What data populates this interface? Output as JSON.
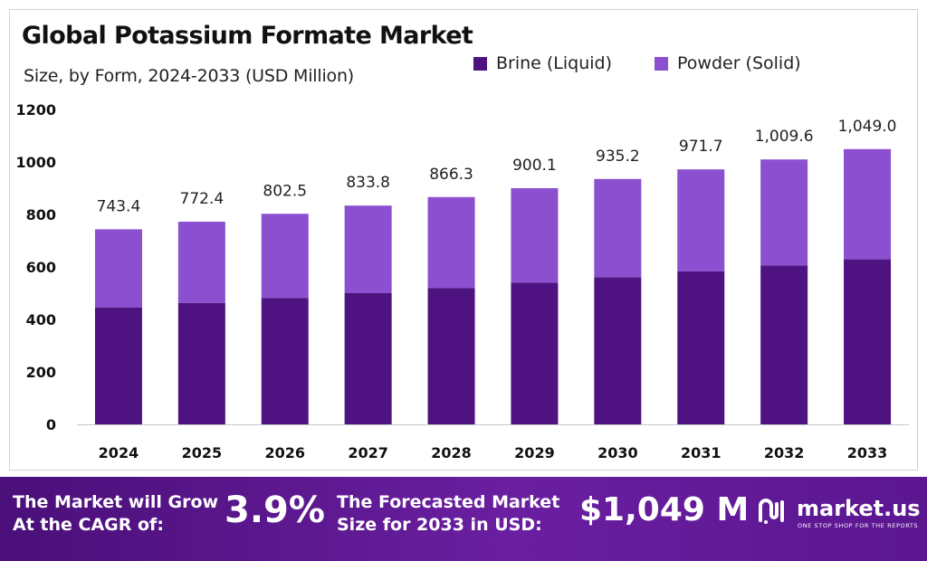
{
  "header": {
    "title": "Global Potassium Formate Market",
    "subtitle": "Size, by Form, 2024-2033 (USD Million)"
  },
  "colors": {
    "brine": "#4e1380",
    "powder": "#8b4fd0",
    "banner": "#5a168e"
  },
  "chart_data": {
    "type": "bar",
    "stacked": true,
    "categories": [
      "2024",
      "2025",
      "2026",
      "2027",
      "2028",
      "2029",
      "2030",
      "2031",
      "2032",
      "2033"
    ],
    "series": [
      {
        "name": "Brine (Liquid)",
        "values": [
          446,
          463,
          482,
          500,
          520,
          540,
          561,
          583,
          606,
          629
        ]
      },
      {
        "name": "Powder (Solid)",
        "values": [
          297.4,
          309.4,
          320.5,
          333.8,
          346.3,
          360.1,
          374.2,
          388.7,
          403.6,
          420.0
        ]
      }
    ],
    "totals": [
      743.4,
      772.4,
      802.5,
      833.8,
      866.3,
      900.1,
      935.2,
      971.7,
      1009.6,
      1049.0
    ],
    "total_labels": [
      "743.4",
      "772.4",
      "802.5",
      "833.8",
      "866.3",
      "900.1",
      "935.2",
      "971.7",
      "1,009.6",
      "1,049.0"
    ],
    "yticks": [
      "0",
      "200",
      "400",
      "600",
      "800",
      "1000",
      "1200"
    ],
    "ylim": [
      0,
      1200
    ],
    "legend_position": "top-right",
    "grid": false
  },
  "banner": {
    "cagr_text_line1": "The Market will Grow",
    "cagr_text_line2": "At the CAGR of:",
    "cagr_value": "3.9%",
    "forecast_text_line1": "The Forecasted Market",
    "forecast_text_line2": "Size for 2033 in USD:",
    "forecast_value": "$1,049 M",
    "brand": "market.us",
    "tagline": "ONE STOP SHOP FOR THE REPORTS"
  }
}
